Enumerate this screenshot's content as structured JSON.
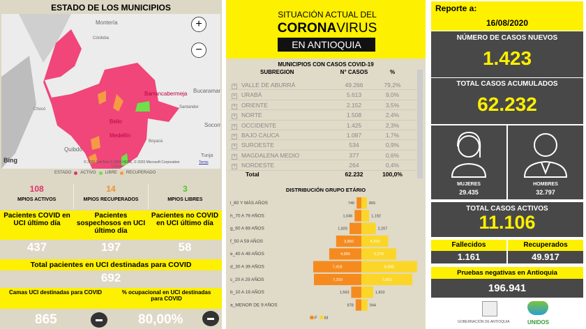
{
  "left": {
    "title": "ESTADO DE LOS MUNICIPIOS",
    "map": {
      "labels": [
        "Montería",
        "Córdoba",
        "Barrancabermeja",
        "Bucaramanga",
        "Santander",
        "Chocó",
        "Bello",
        "Medellín",
        "Quibdó",
        "Socorro",
        "Tunja",
        "Caldas",
        "Boyacá"
      ],
      "attribution": "© 2020 TomTom © 2020 HERE, © 2020 Microsoft Corporation",
      "terms": "Terms",
      "bing": "Bing",
      "zoom_in": "+",
      "zoom_out": "−",
      "colors": {
        "activo": "#f0467a",
        "libre": "#6de04a",
        "recuperado": "#f59a45"
      }
    },
    "legend": {
      "title": "ESTADO",
      "items": [
        "ACTIVO",
        "LIBRE",
        "RECUPERADO"
      ]
    },
    "mpios": [
      {
        "value": "108",
        "label": "MPIOS ACTIVOS",
        "color": "#e0336a"
      },
      {
        "value": "14",
        "label": "MPIOS RECUPERADOS",
        "color": "#f0902c"
      },
      {
        "value": "3",
        "label": "MPIOS LIBRES",
        "color": "#4ec82c"
      }
    ],
    "uci": [
      {
        "label": "Pacientes COVID en UCI último día",
        "value": "437"
      },
      {
        "label": "Pacientes sospechosos en UCI último día",
        "value": "197"
      },
      {
        "label": "Pacientes no COVID en UCI último día",
        "value": "58"
      }
    ],
    "total_uci": {
      "label": "Total pacientes en UCI destinadas para COVID",
      "value": "692"
    },
    "camas": {
      "label": "Camas UCI destinadas para COVID",
      "value": "865"
    },
    "ocupacion": {
      "label": "% ocupacional en UCI destinadas para COVID",
      "value": "80,00%"
    }
  },
  "middle": {
    "header": {
      "line1": "SITUACIÓN ACTUAL DEL",
      "corona": "CORONA",
      "virus": "VIRUS",
      "line3": "EN ANTIOQUIA"
    },
    "table": {
      "title": "MUNICIPIOS CON CASOS COVID-19",
      "columns": [
        "SUBREGION",
        "N° CASOS",
        "%"
      ],
      "rows": [
        [
          "VALLE DE ABURRÁ",
          "49.266",
          "79,2%"
        ],
        [
          "URABÁ",
          "5.613",
          "9,0%"
        ],
        [
          "ORIENTE",
          "2.152",
          "3,5%"
        ],
        [
          "NORTE",
          "1.508",
          "2,4%"
        ],
        [
          "OCCIDENTE",
          "1.425",
          "2,3%"
        ],
        [
          "BAJO CAUCA",
          "1.087",
          "1,7%"
        ],
        [
          "SUROESTE",
          "534",
          "0,9%"
        ],
        [
          "MAGDALENA MEDIO",
          "377",
          "0,6%"
        ],
        [
          "NORDESTE",
          "264",
          "0,4%"
        ]
      ],
      "total": [
        "Total",
        "62.232",
        "100,0%"
      ]
    }
  },
  "chart_data": {
    "type": "bar",
    "title": "DISTRIBUCIÓN GRUPO ETÁRIO",
    "categories": [
      "i_80 Y MÁS AÑOS",
      "h_70 A 79 AÑOS",
      "g_60 A 69 AÑOS",
      "f_50 A 59 AÑOS",
      "e_40 A 49 AÑOS",
      "d_30 A 39 AÑOS",
      "c_20 A 29 AÑOS",
      "b_10 A 19 AÑOS",
      "a_MENOR DE 9 AÑOS"
    ],
    "series": [
      {
        "name": "F",
        "color": "#f58b1f",
        "values": [
          740,
          1046,
          1826,
          3890,
          4955,
          7418,
          7310,
          1563,
          878
        ],
        "labels": [
          "740",
          "1,046",
          "1,826",
          "3,890",
          "4,955",
          "7,418",
          "7,310",
          "1,563",
          "878"
        ]
      },
      {
        "name": "M",
        "color": "#fbd629",
        "values": [
          865,
          1192,
          2207,
          4153,
          5376,
          8585,
          7853,
          1822,
          944
        ],
        "labels": [
          "865",
          "1,192",
          "2,207",
          "4,153",
          "5,376",
          "8,585",
          "7,853",
          "1,822",
          "944"
        ]
      }
    ],
    "legend": "bottom"
  },
  "right": {
    "report_label": "Reporte a:",
    "date": "16/08/2020",
    "nuevos": {
      "label": "NÚMERO DE CASOS NUEVOS",
      "value": "1.423"
    },
    "acumulados": {
      "label": "TOTAL CASOS ACUMULADOS",
      "value": "62.232"
    },
    "mujeres": {
      "label": "MUJERES",
      "value": "29.435"
    },
    "hombres": {
      "label": "HOMBRES",
      "value": "32.797"
    },
    "activos": {
      "label": "TOTAL CASOS ACTIVOS",
      "value": "11.106"
    },
    "fallecidos": {
      "label": "Fallecidos",
      "value": "1.161"
    },
    "recuperados": {
      "label": "Recuperados",
      "value": "49.917"
    },
    "pruebas": {
      "label": "Pruebas negativas en Antioquia",
      "value": "196.941"
    },
    "logos": {
      "gobernacion": "GOBERNACIÓN DE ANTIOQUIA",
      "unidos": "UNIDOS"
    }
  }
}
